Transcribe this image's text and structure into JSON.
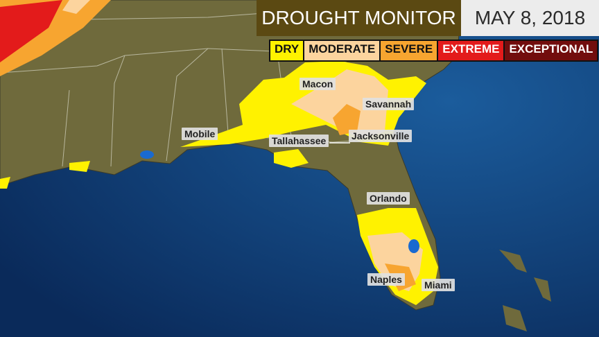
{
  "header": {
    "title": "DROUGHT MONITOR",
    "date": "MAY 8, 2018"
  },
  "legend": [
    {
      "label": "DRY",
      "color": "#fff200"
    },
    {
      "label": "MODERATE",
      "color": "#fcd49e"
    },
    {
      "label": "SEVERE",
      "color": "#f7a530"
    },
    {
      "label": "EXTREME",
      "color": "#e31b1b"
    },
    {
      "label": "EXCEPTIONAL",
      "color": "#720d0d"
    }
  ],
  "cities": [
    {
      "label": "Macon"
    },
    {
      "label": "Savannah"
    },
    {
      "label": "Mobile"
    },
    {
      "label": "Tallahassee"
    },
    {
      "label": "Jacksonville"
    },
    {
      "label": "Orlando"
    },
    {
      "label": "Naples"
    },
    {
      "label": "Miami"
    }
  ]
}
